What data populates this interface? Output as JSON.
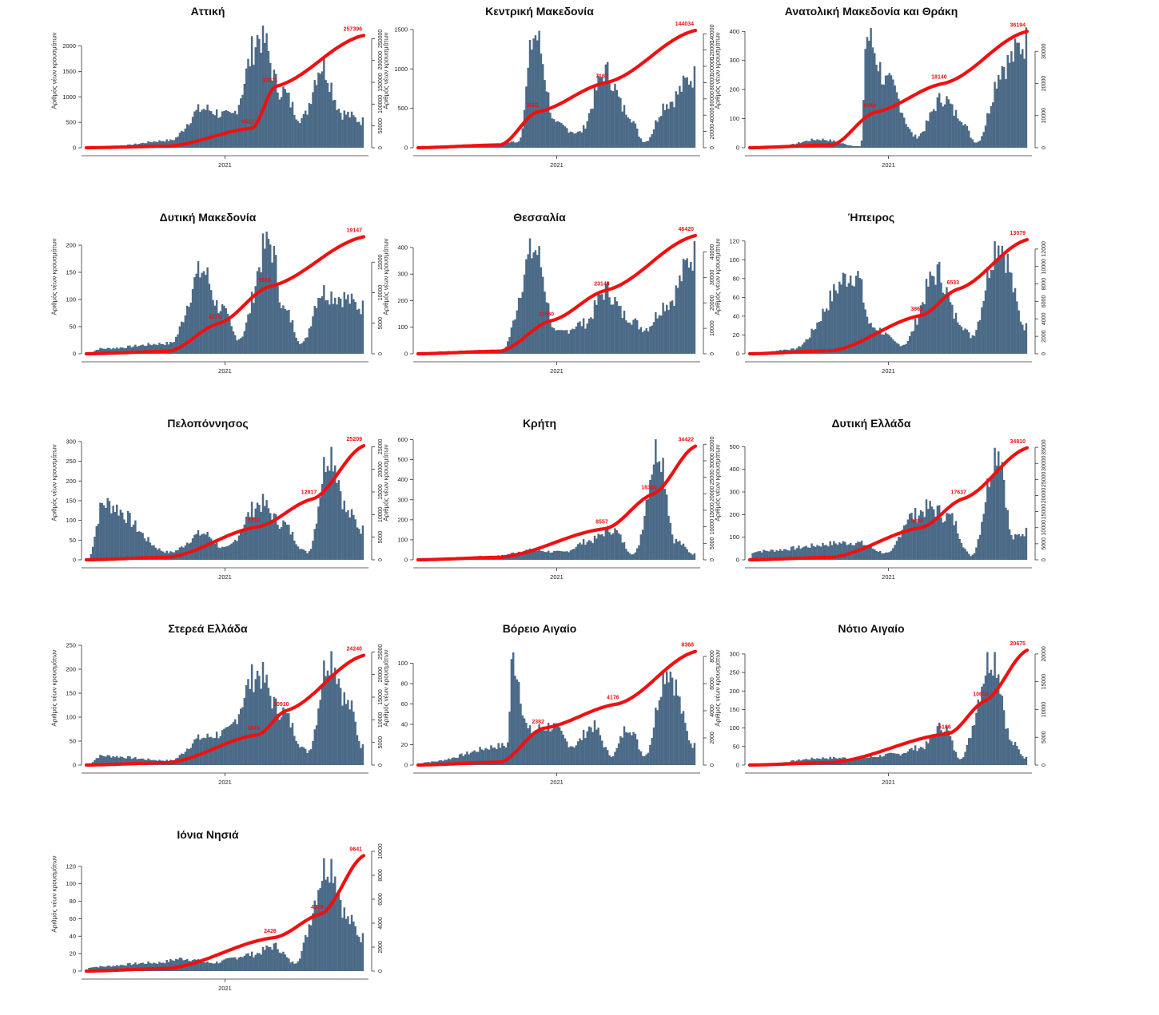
{
  "chart_data": {
    "type": "bar",
    "common": {
      "ylabel": "Αριθμός νέων κρουσμάτων",
      "xtick": "2021",
      "bar_color": "#4a6a87",
      "line_color": "#ee1111"
    },
    "panels": [
      {
        "title": "Αττική",
        "ylim": [
          0,
          2400
        ],
        "y2lim": [
          0,
          280000
        ],
        "yticks": [
          0,
          500,
          1000,
          1500,
          2000
        ],
        "y2ticks": [
          0,
          50000,
          100000,
          150000,
          200000,
          250000
        ],
        "peaks": [
          [
            0.1,
            40
          ],
          [
            0.3,
            150
          ],
          [
            0.42,
            800
          ],
          [
            0.52,
            650
          ],
          [
            0.63,
            2300
          ],
          [
            0.7,
            1200
          ],
          [
            0.78,
            600
          ],
          [
            0.85,
            1700
          ],
          [
            0.93,
            700
          ],
          [
            1.0,
            550
          ]
        ],
        "cum_labels": [
          {
            "t": 0.6,
            "v": 45000,
            "label": "4512"
          },
          {
            "t": 0.68,
            "v": 140000,
            "label": "12811"
          },
          {
            "t": 1.0,
            "v": 257396,
            "label": "257396"
          }
        ]
      },
      {
        "title": "Κεντρική Μακεδονία",
        "ylim": [
          0,
          1550
        ],
        "y2lim": [
          0,
          150000
        ],
        "yticks": [
          0,
          500,
          1000,
          1500
        ],
        "y2ticks": [
          0,
          20000,
          40000,
          60000,
          80000,
          100000,
          120000,
          140000
        ],
        "peaks": [
          [
            0.25,
            40
          ],
          [
            0.36,
            80
          ],
          [
            0.42,
            1500
          ],
          [
            0.5,
            300
          ],
          [
            0.58,
            200
          ],
          [
            0.68,
            1000
          ],
          [
            0.75,
            500
          ],
          [
            0.82,
            80
          ],
          [
            0.9,
            600
          ],
          [
            1.0,
            950
          ]
        ],
        "cum_labels": [
          {
            "t": 0.43,
            "v": 44000,
            "label": "3661"
          },
          {
            "t": 0.68,
            "v": 80000,
            "label": "7163"
          },
          {
            "t": 1.0,
            "v": 144034,
            "label": "144034"
          }
        ]
      },
      {
        "title": "Ανατολική Μακεδονία και Θράκη",
        "ylim": [
          0,
          420
        ],
        "y2lim": [
          0,
          38000
        ],
        "yticks": [
          0,
          100,
          200,
          300,
          400
        ],
        "y2ticks": [
          0,
          10000,
          20000,
          30000
        ],
        "peaks": [
          [
            0.1,
            5
          ],
          [
            0.25,
            30
          ],
          [
            0.4,
            5
          ],
          [
            0.42,
            400
          ],
          [
            0.5,
            230
          ],
          [
            0.6,
            40
          ],
          [
            0.7,
            180
          ],
          [
            0.75,
            120
          ],
          [
            0.82,
            20
          ],
          [
            0.92,
            300
          ],
          [
            1.0,
            380
          ]
        ],
        "cum_labels": [
          {
            "t": 0.45,
            "v": 11000,
            "label": "9743"
          },
          {
            "t": 0.7,
            "v": 20000,
            "label": "18140"
          },
          {
            "t": 1.0,
            "v": 36194,
            "label": "36194"
          }
        ]
      },
      {
        "title": "Δυτική Μακεδονία",
        "ylim": [
          0,
          225
        ],
        "y2lim": [
          0,
          20000
        ],
        "yticks": [
          0,
          50,
          100,
          150,
          200
        ],
        "y2ticks": [
          0,
          5000,
          10000,
          15000
        ],
        "peaks": [
          [
            0.05,
            10
          ],
          [
            0.3,
            20
          ],
          [
            0.42,
            160
          ],
          [
            0.48,
            90
          ],
          [
            0.55,
            30
          ],
          [
            0.66,
            215
          ],
          [
            0.72,
            80
          ],
          [
            0.78,
            20
          ],
          [
            0.85,
            120
          ],
          [
            0.92,
            110
          ],
          [
            1.0,
            90
          ]
        ],
        "cum_labels": [
          {
            "t": 0.48,
            "v": 5000,
            "label": "4274"
          },
          {
            "t": 0.66,
            "v": 11000,
            "label": "9558"
          },
          {
            "t": 1.0,
            "v": 19147,
            "label": "19147"
          }
        ]
      },
      {
        "title": "Θεσσαλία",
        "ylim": [
          0,
          460
        ],
        "y2lim": [
          0,
          48000
        ],
        "yticks": [
          0,
          100,
          200,
          300,
          400
        ],
        "y2ticks": [
          0,
          10000,
          20000,
          30000,
          40000
        ],
        "peaks": [
          [
            0.1,
            10
          ],
          [
            0.3,
            15
          ],
          [
            0.42,
            410
          ],
          [
            0.5,
            80
          ],
          [
            0.6,
            120
          ],
          [
            0.68,
            250
          ],
          [
            0.75,
            150
          ],
          [
            0.82,
            100
          ],
          [
            0.9,
            200
          ],
          [
            1.0,
            390
          ]
        ],
        "cum_labels": [
          {
            "t": 0.48,
            "v": 13000,
            "label": "11560"
          },
          {
            "t": 0.68,
            "v": 25000,
            "label": "23143"
          },
          {
            "t": 1.0,
            "v": 46420,
            "label": "46420"
          }
        ]
      },
      {
        "title": "Ήπειρος",
        "ylim": [
          0,
          130
        ],
        "y2lim": [
          0,
          14000
        ],
        "yticks": [
          0,
          20,
          40,
          60,
          80,
          100,
          120
        ],
        "y2ticks": [
          0,
          2000,
          4000,
          6000,
          8000,
          10000,
          12000
        ],
        "peaks": [
          [
            0.15,
            5
          ],
          [
            0.38,
            90
          ],
          [
            0.44,
            30
          ],
          [
            0.55,
            10
          ],
          [
            0.68,
            90
          ],
          [
            0.75,
            40
          ],
          [
            0.8,
            20
          ],
          [
            0.9,
            125
          ],
          [
            1.0,
            30
          ]
        ],
        "cum_labels": [
          {
            "t": 0.62,
            "v": 4400,
            "label": "3862"
          },
          {
            "t": 0.75,
            "v": 7400,
            "label": "6533"
          },
          {
            "t": 1.0,
            "v": 13079,
            "label": "13079"
          }
        ]
      },
      {
        "title": "Πελοπόννησος",
        "ylim": [
          0,
          310
        ],
        "y2lim": [
          0,
          27000
        ],
        "yticks": [
          0,
          50,
          100,
          150,
          200,
          250,
          300
        ],
        "y2ticks": [
          0,
          5000,
          10000,
          15000,
          20000,
          25000
        ],
        "peaks": [
          [
            0.06,
            150
          ],
          [
            0.3,
            20
          ],
          [
            0.42,
            70
          ],
          [
            0.5,
            30
          ],
          [
            0.63,
            150
          ],
          [
            0.7,
            100
          ],
          [
            0.8,
            20
          ],
          [
            0.88,
            290
          ],
          [
            0.95,
            120
          ],
          [
            1.0,
            80
          ]
        ],
        "cum_labels": [
          {
            "t": 0.62,
            "v": 7300,
            "label": "6232"
          },
          {
            "t": 0.82,
            "v": 13500,
            "label": "12817"
          },
          {
            "t": 1.0,
            "v": 25209,
            "label": "25209"
          }
        ]
      },
      {
        "title": "Κρήτη",
        "ylim": [
          0,
          610
        ],
        "y2lim": [
          0,
          37000
        ],
        "yticks": [
          0,
          100,
          200,
          300,
          400,
          500,
          600
        ],
        "y2ticks": [
          0,
          5000,
          10000,
          15000,
          20000,
          25000,
          30000,
          35000
        ],
        "peaks": [
          [
            0.28,
            20
          ],
          [
            0.4,
            50
          ],
          [
            0.52,
            40
          ],
          [
            0.62,
            100
          ],
          [
            0.7,
            160
          ],
          [
            0.78,
            30
          ],
          [
            0.87,
            590
          ],
          [
            0.93,
            100
          ],
          [
            1.0,
            30
          ]
        ],
        "cum_labels": [
          {
            "t": 0.68,
            "v": 9500,
            "label": "8557"
          },
          {
            "t": 0.85,
            "v": 20000,
            "label": "18350"
          },
          {
            "t": 1.0,
            "v": 34422,
            "label": "34422"
          }
        ]
      },
      {
        "title": "Δυτική Ελλάδα",
        "ylim": [
          0,
          540
        ],
        "y2lim": [
          0,
          38000
        ],
        "yticks": [
          0,
          100,
          200,
          300,
          400,
          500
        ],
        "y2ticks": [
          0,
          5000,
          10000,
          15000,
          20000,
          25000,
          30000,
          35000
        ],
        "peaks": [
          [
            0.01,
            40
          ],
          [
            0.38,
            80
          ],
          [
            0.5,
            30
          ],
          [
            0.58,
            200
          ],
          [
            0.65,
            240
          ],
          [
            0.72,
            200
          ],
          [
            0.8,
            20
          ],
          [
            0.9,
            520
          ],
          [
            0.95,
            100
          ],
          [
            1.0,
            130
          ]
        ],
        "cum_labels": [
          {
            "t": 0.62,
            "v": 10000,
            "label": "8804"
          },
          {
            "t": 0.77,
            "v": 19000,
            "label": "17637"
          },
          {
            "t": 1.0,
            "v": 34810,
            "label": "34810"
          }
        ]
      },
      {
        "title": "Στερεά Ελλάδα",
        "ylim": [
          0,
          255
        ],
        "y2lim": [
          0,
          27000
        ],
        "yticks": [
          0,
          50,
          100,
          150,
          200,
          250
        ],
        "y2ticks": [
          0,
          5000,
          10000,
          15000,
          20000,
          25000
        ],
        "peaks": [
          [
            0.05,
            20
          ],
          [
            0.3,
            10
          ],
          [
            0.42,
            60
          ],
          [
            0.5,
            70
          ],
          [
            0.62,
            200
          ],
          [
            0.7,
            120
          ],
          [
            0.8,
            30
          ],
          [
            0.88,
            240
          ],
          [
            0.95,
            130
          ],
          [
            1.0,
            40
          ]
        ],
        "cum_labels": [
          {
            "t": 0.62,
            "v": 6700,
            "label": "5841"
          },
          {
            "t": 0.72,
            "v": 12000,
            "label": "10910"
          },
          {
            "t": 1.0,
            "v": 24240,
            "label": "24240"
          }
        ]
      },
      {
        "title": "Βόρειο Αιγαίο",
        "ylim": [
          0,
          120
        ],
        "y2lim": [
          0,
          9000
        ],
        "yticks": [
          0,
          20,
          40,
          60,
          80,
          100
        ],
        "y2ticks": [
          0,
          2000,
          4000,
          6000,
          8000
        ],
        "peaks": [
          [
            0.02,
            3
          ],
          [
            0.32,
            20
          ],
          [
            0.34,
            110
          ],
          [
            0.4,
            35
          ],
          [
            0.48,
            40
          ],
          [
            0.56,
            20
          ],
          [
            0.63,
            40
          ],
          [
            0.7,
            10
          ],
          [
            0.76,
            40
          ],
          [
            0.82,
            10
          ],
          [
            0.9,
            100
          ],
          [
            1.0,
            20
          ]
        ],
        "cum_labels": [
          {
            "t": 0.45,
            "v": 2700,
            "label": "2382"
          },
          {
            "t": 0.72,
            "v": 4500,
            "label": "4176"
          },
          {
            "t": 1.0,
            "v": 8368,
            "label": "8368"
          }
        ]
      },
      {
        "title": "Νότιο Αιγαίο",
        "ylim": [
          0,
          330
        ],
        "y2lim": [
          0,
          22000
        ],
        "yticks": [
          0,
          50,
          100,
          150,
          200,
          250,
          300
        ],
        "y2ticks": [
          0,
          5000,
          10000,
          15000,
          20000
        ],
        "peaks": [
          [
            0.28,
            20
          ],
          [
            0.4,
            20
          ],
          [
            0.52,
            30
          ],
          [
            0.62,
            50
          ],
          [
            0.7,
            110
          ],
          [
            0.76,
            20
          ],
          [
            0.88,
            310
          ],
          [
            0.95,
            60
          ],
          [
            1.0,
            20
          ]
        ],
        "cum_labels": [
          {
            "t": 0.72,
            "v": 5700,
            "label": "5186"
          },
          {
            "t": 0.85,
            "v": 11600,
            "label": "10618"
          },
          {
            "t": 1.0,
            "v": 20675,
            "label": "20675"
          }
        ]
      },
      {
        "title": "Ιόνια Νησιά",
        "ylim": [
          0,
          140
        ],
        "y2lim": [
          0,
          10200
        ],
        "yticks": [
          0,
          20,
          40,
          60,
          80,
          100,
          120
        ],
        "y2ticks": [
          0,
          2000,
          4000,
          6000,
          8000,
          10000
        ],
        "peaks": [
          [
            0.01,
            5
          ],
          [
            0.25,
            10
          ],
          [
            0.35,
            15
          ],
          [
            0.45,
            10
          ],
          [
            0.6,
            20
          ],
          [
            0.68,
            30
          ],
          [
            0.75,
            10
          ],
          [
            0.88,
            130
          ],
          [
            0.95,
            60
          ],
          [
            1.0,
            40
          ]
        ],
        "cum_labels": [
          {
            "t": 0.68,
            "v": 2800,
            "label": "2426"
          },
          {
            "t": 0.85,
            "v": 4800,
            "label": "4328"
          },
          {
            "t": 1.0,
            "v": 9641,
            "label": "9641"
          }
        ]
      }
    ]
  }
}
